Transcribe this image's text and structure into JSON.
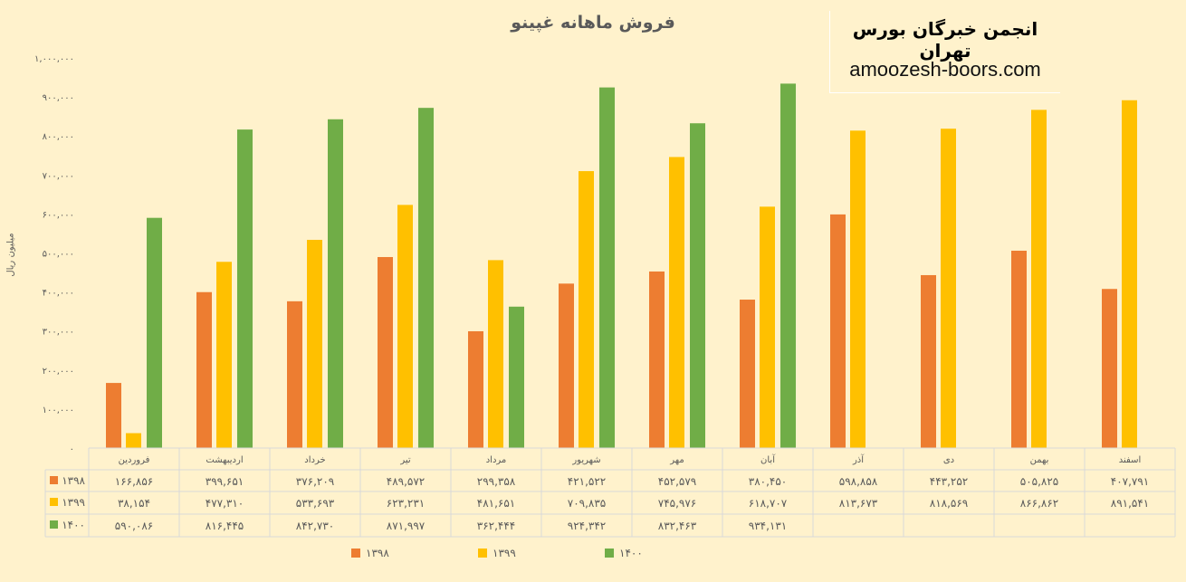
{
  "chart_data": {
    "type": "bar",
    "title": "فروش ماهانه غپینو",
    "xlabel": "",
    "ylabel": "میلیون ریال",
    "ylim": [
      0,
      1000000
    ],
    "ytick_step": 100000,
    "ytick_labels": [
      "۰",
      "۱۰۰,۰۰۰",
      "۲۰۰,۰۰۰",
      "۳۰۰,۰۰۰",
      "۴۰۰,۰۰۰",
      "۵۰۰,۰۰۰",
      "۶۰۰,۰۰۰",
      "۷۰۰,۰۰۰",
      "۸۰۰,۰۰۰",
      "۹۰۰,۰۰۰",
      "۱,۰۰۰,۰۰۰"
    ],
    "categories": [
      "فروردین",
      "اردیبهشت",
      "خرداد",
      "تیر",
      "مرداد",
      "شهریور",
      "مهر",
      "آبان",
      "آذر",
      "دی",
      "بهمن",
      "اسفند"
    ],
    "legend_position": "bottom",
    "series": [
      {
        "name": "۱۳۹۸",
        "color": "#ed7d31",
        "values": [
          166856,
          399651,
          376209,
          489572,
          299358,
          421522,
          452579,
          380450,
          598858,
          443252,
          505825,
          407791
        ],
        "labels": [
          "۱۶۶,۸۵۶",
          "۳۹۹,۶۵۱",
          "۳۷۶,۲۰۹",
          "۴۸۹,۵۷۲",
          "۲۹۹,۳۵۸",
          "۴۲۱,۵۲۲",
          "۴۵۲,۵۷۹",
          "۳۸۰,۴۵۰",
          "۵۹۸,۸۵۸",
          "۴۴۳,۲۵۲",
          "۵۰۵,۸۲۵",
          "۴۰۷,۷۹۱"
        ]
      },
      {
        "name": "۱۳۹۹",
        "color": "#ffc000",
        "values": [
          38154,
          477310,
          533693,
          623231,
          481651,
          709835,
          745976,
          618707,
          813673,
          818569,
          866862,
          891541
        ],
        "labels": [
          "۳۸,۱۵۴",
          "۴۷۷,۳۱۰",
          "۵۳۳,۶۹۳",
          "۶۲۳,۲۳۱",
          "۴۸۱,۶۵۱",
          "۷۰۹,۸۳۵",
          "۷۴۵,۹۷۶",
          "۶۱۸,۷۰۷",
          "۸۱۳,۶۷۳",
          "۸۱۸,۵۶۹",
          "۸۶۶,۸۶۲",
          "۸۹۱,۵۴۱"
        ]
      },
      {
        "name": "۱۴۰۰",
        "color": "#70ad47",
        "values": [
          590086,
          816445,
          842730,
          871997,
          362444,
          924342,
          832463,
          934131,
          null,
          null,
          null,
          null
        ],
        "labels": [
          "۵۹۰,۰۸۶",
          "۸۱۶,۴۴۵",
          "۸۴۲,۷۳۰",
          "۸۷۱,۹۹۷",
          "۳۶۲,۴۴۴",
          "۹۲۴,۳۴۲",
          "۸۳۲,۴۶۳",
          "۹۳۴,۱۳۱",
          "",
          "",
          "",
          ""
        ]
      }
    ]
  },
  "watermark": {
    "org": "انجمن خبرگان بورس تهران",
    "site": "amoozesh-boors.com"
  }
}
